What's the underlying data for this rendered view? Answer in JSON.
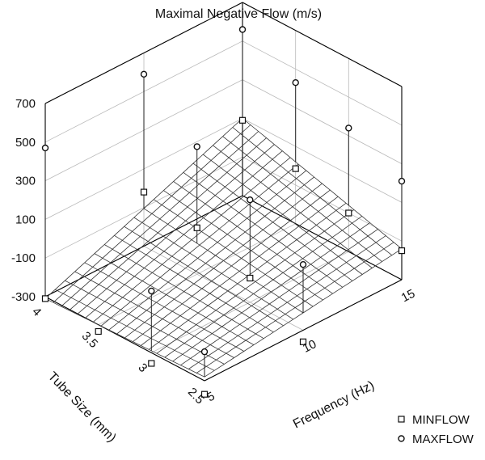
{
  "chart_data": {
    "type": "scatter3d",
    "title": "Maximal Negative Flow (m/s)",
    "xlabel": "Frequency (Hz)",
    "ylabel": "Tube Size (mm)",
    "zlabel": "",
    "x_ticks": [
      "5",
      "10",
      "15"
    ],
    "y_ticks": [
      "2.5",
      "3",
      "3.5",
      "4"
    ],
    "z_ticks": [
      "700",
      "500",
      "300",
      "100",
      "-100",
      "-300"
    ],
    "xlim": [
      5,
      15
    ],
    "ylim": [
      2.5,
      4
    ],
    "zlim": [
      -300,
      700
    ],
    "grid": true,
    "surface": {
      "fitted_series": "MINFLOW",
      "z_at_corners": {
        "f5_t2.5": -280,
        "f5_t4": -310,
        "f15_t4": 100,
        "f15_t2.5": -140
      }
    },
    "legend": {
      "position": "bottom-right",
      "entries": [
        {
          "name": "MINFLOW",
          "marker": "square"
        },
        {
          "name": "MAXFLOW",
          "marker": "circle"
        }
      ]
    },
    "series": [
      {
        "name": "MINFLOW",
        "points": [
          {
            "x": 5,
            "y": 4,
            "z": -310
          },
          {
            "x": 5,
            "y": 3.5,
            "z": -335
          },
          {
            "x": 5,
            "y": 3,
            "z": -355
          },
          {
            "x": 5,
            "y": 2.5,
            "z": -370
          },
          {
            "x": 10,
            "y": 4,
            "z": -20
          },
          {
            "x": 10,
            "y": 3.5,
            "z": -60
          },
          {
            "x": 10,
            "y": 3,
            "z": -175
          },
          {
            "x": 10,
            "y": 2.5,
            "z": -360
          },
          {
            "x": 15,
            "y": 4,
            "z": 90
          },
          {
            "x": 15,
            "y": 3.5,
            "z": -15
          },
          {
            "x": 15,
            "y": 3,
            "z": -100
          },
          {
            "x": 15,
            "y": 2.5,
            "z": -150
          }
        ]
      },
      {
        "name": "MAXFLOW",
        "points": [
          {
            "x": 5,
            "y": 4,
            "z": 470
          },
          {
            "x": 5,
            "y": 3,
            "z": 20
          },
          {
            "x": 5,
            "y": 2.5,
            "z": -150
          },
          {
            "x": 10,
            "y": 4,
            "z": 590
          },
          {
            "x": 10,
            "y": 3.5,
            "z": 360
          },
          {
            "x": 10,
            "y": 3,
            "z": 230
          },
          {
            "x": 10,
            "y": 2.5,
            "z": 40
          },
          {
            "x": 15,
            "y": 4,
            "z": 560
          },
          {
            "x": 15,
            "y": 3.5,
            "z": 430
          },
          {
            "x": 15,
            "y": 3,
            "z": 340
          },
          {
            "x": 15,
            "y": 2.5,
            "z": 210
          }
        ]
      }
    ],
    "colors": {
      "lines": "#000000",
      "grid": "#b9b9b9",
      "surface": "#333333",
      "marker_fill": "#ffffff"
    }
  }
}
